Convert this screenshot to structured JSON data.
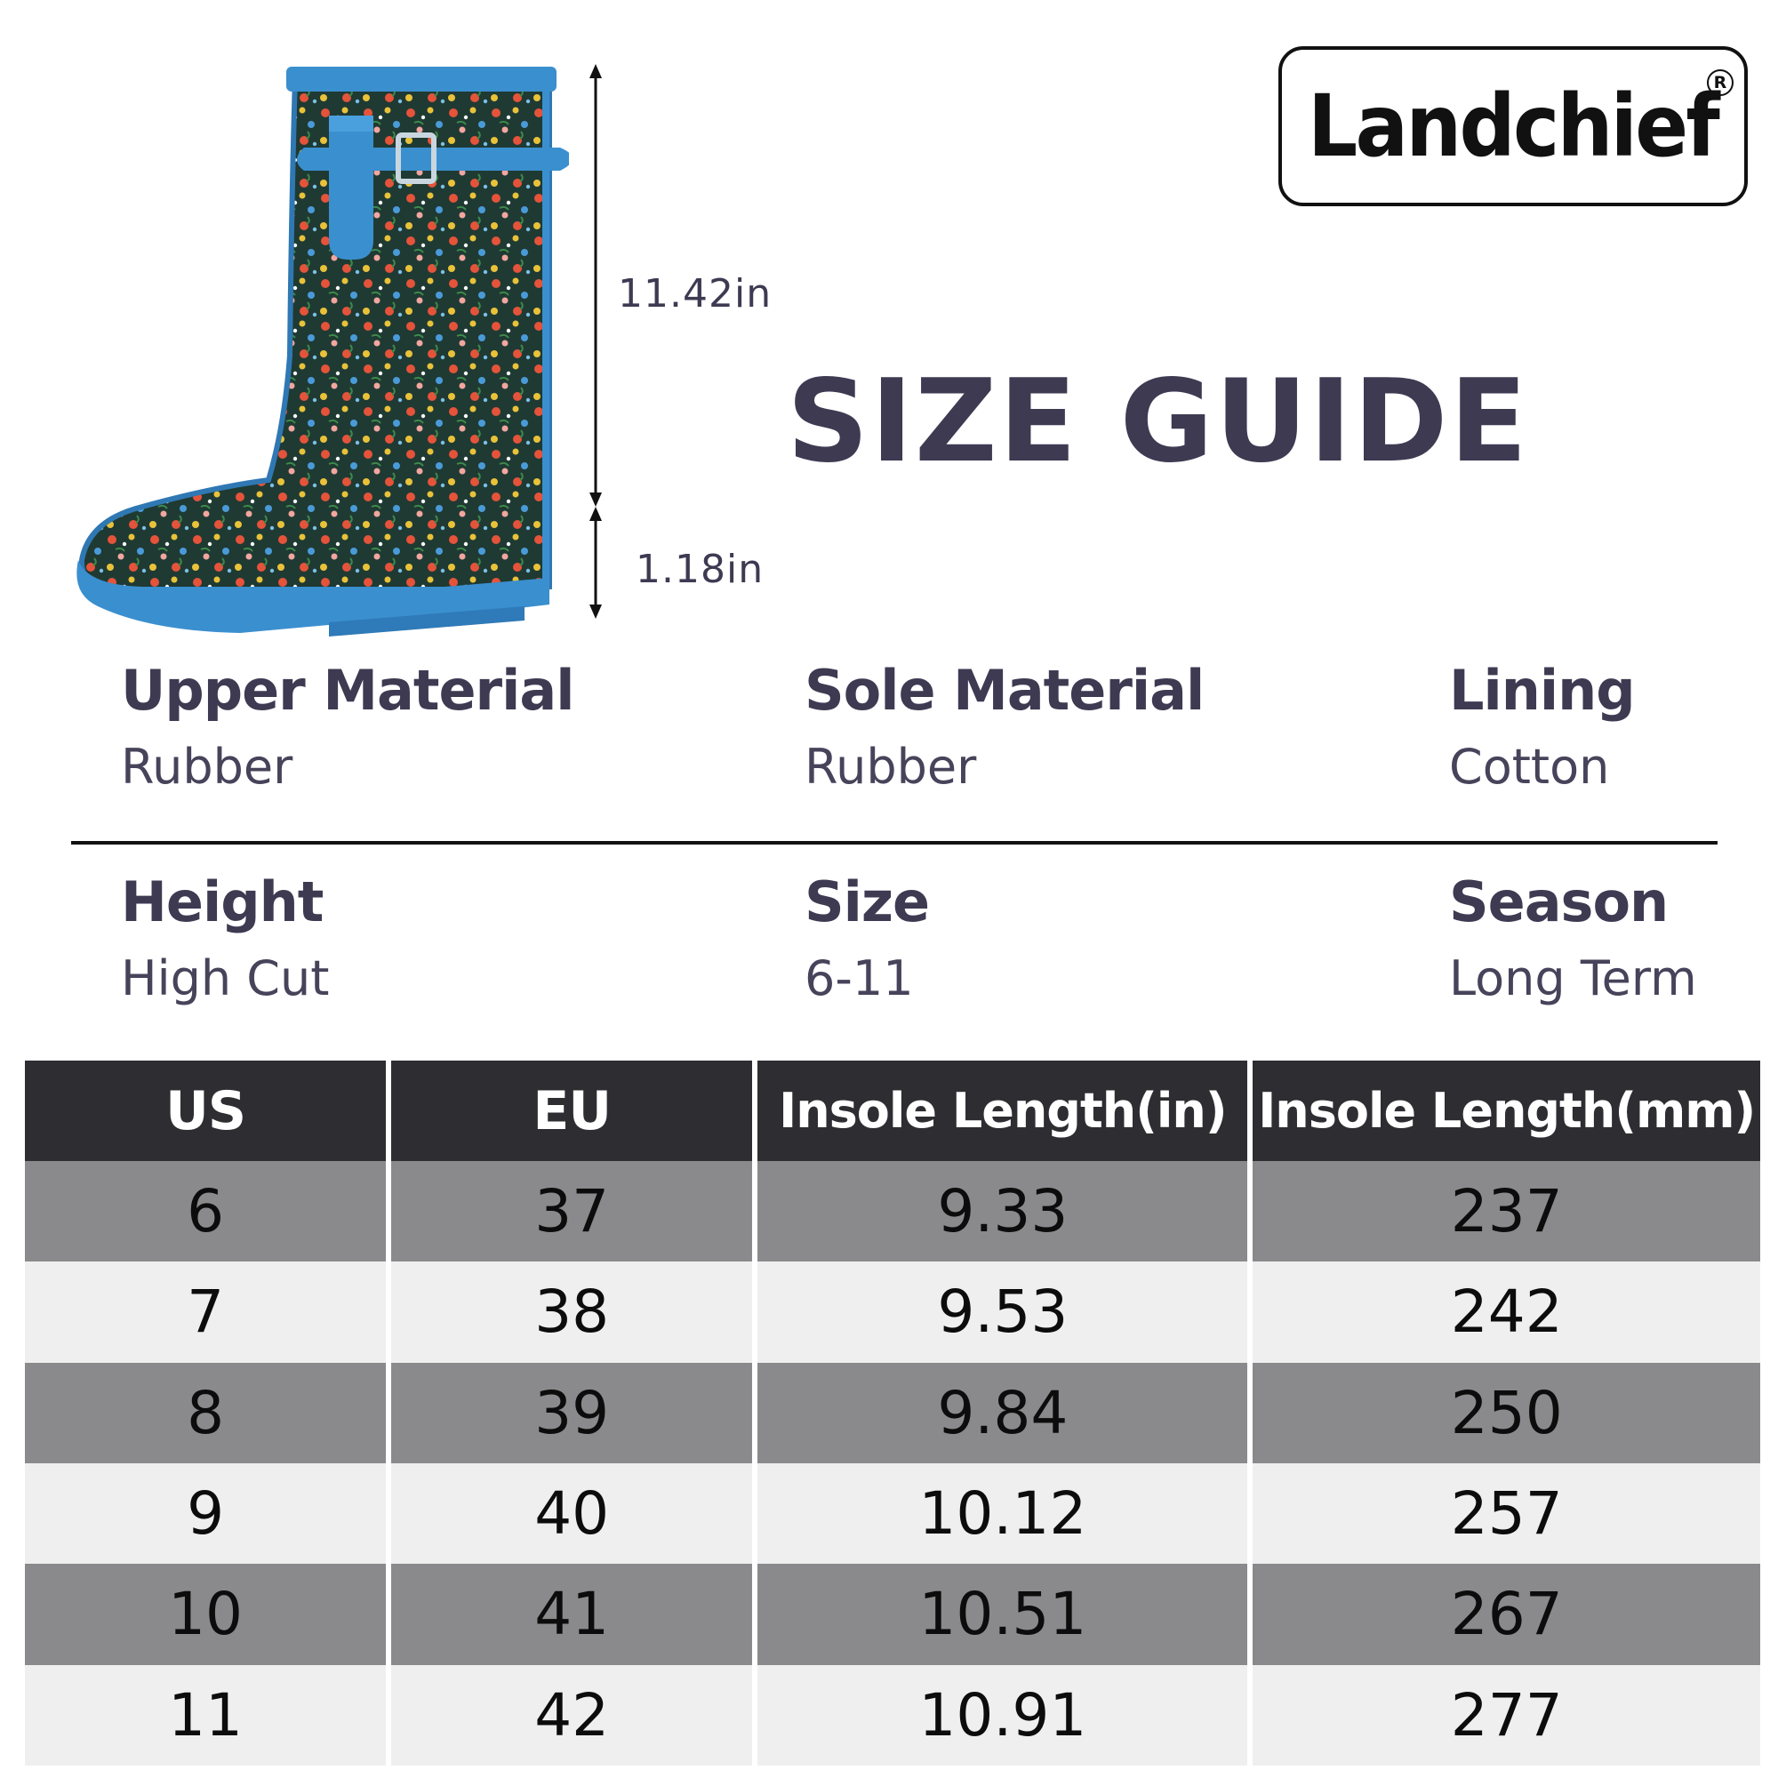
{
  "brand": {
    "name": "Landchief",
    "registered_mark": "R"
  },
  "title": "SIZE GUIDE",
  "dimensions": {
    "shaft_height": "11.42in",
    "heel_height": "1.18in"
  },
  "specs": [
    {
      "label": "Upper Material",
      "value": "Rubber"
    },
    {
      "label": "Sole Material",
      "value": "Rubber"
    },
    {
      "label": "Lining",
      "value": "Cotton"
    },
    {
      "label": "Height",
      "value": "High Cut"
    },
    {
      "label": "Size",
      "value": "6-11"
    },
    {
      "label": "Season",
      "value": "Long Term"
    }
  ],
  "table": {
    "headers": [
      "US",
      "EU",
      "Insole Length(in)",
      "Insole Length(mm)"
    ],
    "rows": [
      [
        "6",
        "37",
        "9.33",
        "237"
      ],
      [
        "7",
        "38",
        "9.53",
        "242"
      ],
      [
        "8",
        "39",
        "9.84",
        "250"
      ],
      [
        "9",
        "40",
        "10.12",
        "257"
      ],
      [
        "10",
        "41",
        "10.51",
        "267"
      ],
      [
        "11",
        "42",
        "10.91",
        "277"
      ]
    ]
  },
  "colors": {
    "title_text": "#3d3a52",
    "header_bg": "#2d2d32",
    "row_dark": "#8a8a8c",
    "row_light": "#efefef",
    "boot_trim": "#3a8fcf",
    "boot_body": "#1f3a33"
  }
}
